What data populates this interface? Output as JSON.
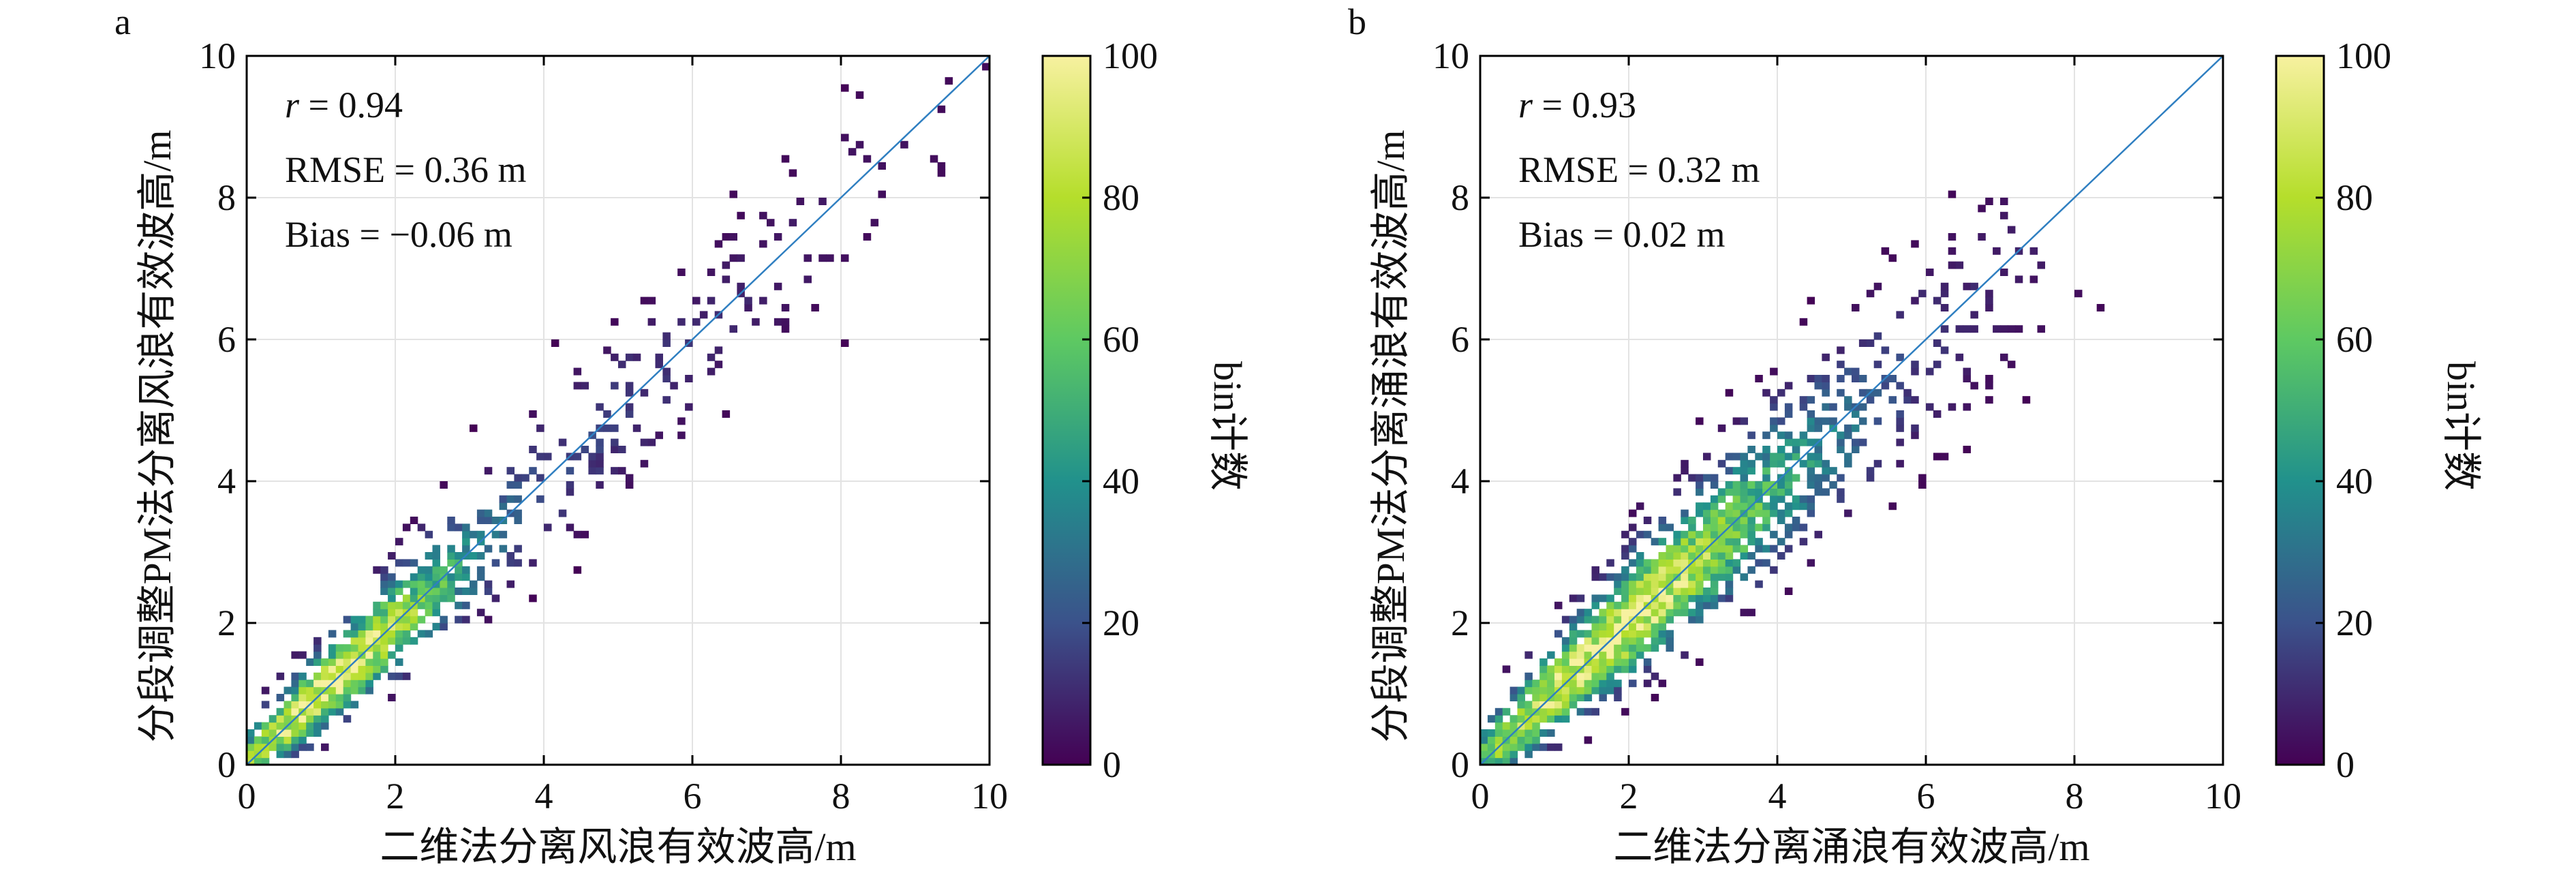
{
  "figure": {
    "panels": [
      {
        "letter": "a",
        "xlabel": "二维法分离风浪有效波高/m",
        "ylabel": "分段调整PM法分离风浪有效波高/m",
        "colorbar_label": "bin计数",
        "stats": {
          "r_sym": "r",
          "r_rest": " = 0.94",
          "rmse": "RMSE = 0.36 m",
          "bias": "Bias = −0.06 m"
        }
      },
      {
        "letter": "b",
        "xlabel": "二维法分离涌浪有效波高/m",
        "ylabel": "分段调整PM法分离涌浪有效波高/m",
        "colorbar_label": "bin计数",
        "stats": {
          "r_sym": "r",
          "r_rest": " = 0.93",
          "rmse": "RMSE = 0.32 m",
          "bias": "Bias = 0.02 m"
        }
      }
    ]
  },
  "colors": {
    "one_to_one_line": "#2f7fc1",
    "colormap": [
      "#440154",
      "#3b528b",
      "#21918c",
      "#5ec962",
      "#b5de2b",
      "#f7f1a0"
    ]
  },
  "chart_data": [
    {
      "type": "heatmap",
      "title": "",
      "xlabel": "二维法分离风浪有效波高/m",
      "ylabel": "分段调整PM法分离风浪有效波高/m",
      "xlim": [
        0,
        10
      ],
      "ylim": [
        0,
        10
      ],
      "xticks": [
        0,
        2,
        4,
        6,
        8,
        10
      ],
      "yticks": [
        0,
        2,
        4,
        6,
        8,
        10
      ],
      "grid": true,
      "reference_line": "y = x",
      "colorbar": {
        "label": "bin计数",
        "range": [
          0,
          100
        ],
        "ticks": [
          0,
          20,
          40,
          60,
          80,
          100
        ]
      },
      "stats": {
        "r": 0.94,
        "rmse_m": 0.36,
        "bias_m": -0.06
      },
      "density_description": "dense along 1:1 line, yellow core 0.3–2 m",
      "density_model": {
        "core_x": [
          0.3,
          2.0
        ],
        "spread": 0.35,
        "max_extent": 10
      }
    },
    {
      "type": "heatmap",
      "title": "",
      "xlabel": "二维法分离涌浪有效波高/m",
      "ylabel": "分段调整PM法分离涌浪有效波高/m",
      "xlim": [
        0,
        10
      ],
      "ylim": [
        0,
        10
      ],
      "xticks": [
        0,
        2,
        4,
        6,
        8,
        10
      ],
      "yticks": [
        0,
        2,
        4,
        6,
        8,
        10
      ],
      "grid": true,
      "reference_line": "y = x",
      "colorbar": {
        "label": "bin计数",
        "range": [
          0,
          100
        ],
        "ticks": [
          0,
          20,
          40,
          60,
          80,
          100
        ]
      },
      "stats": {
        "r": 0.93,
        "rmse_m": 0.32,
        "bias_m": 0.02
      },
      "density_description": "dense along 1:1 line, yellow core 0.5–3 m",
      "density_model": {
        "core_x": [
          0.5,
          3.0
        ],
        "spread": 0.4,
        "max_extent": 7.5
      }
    }
  ]
}
